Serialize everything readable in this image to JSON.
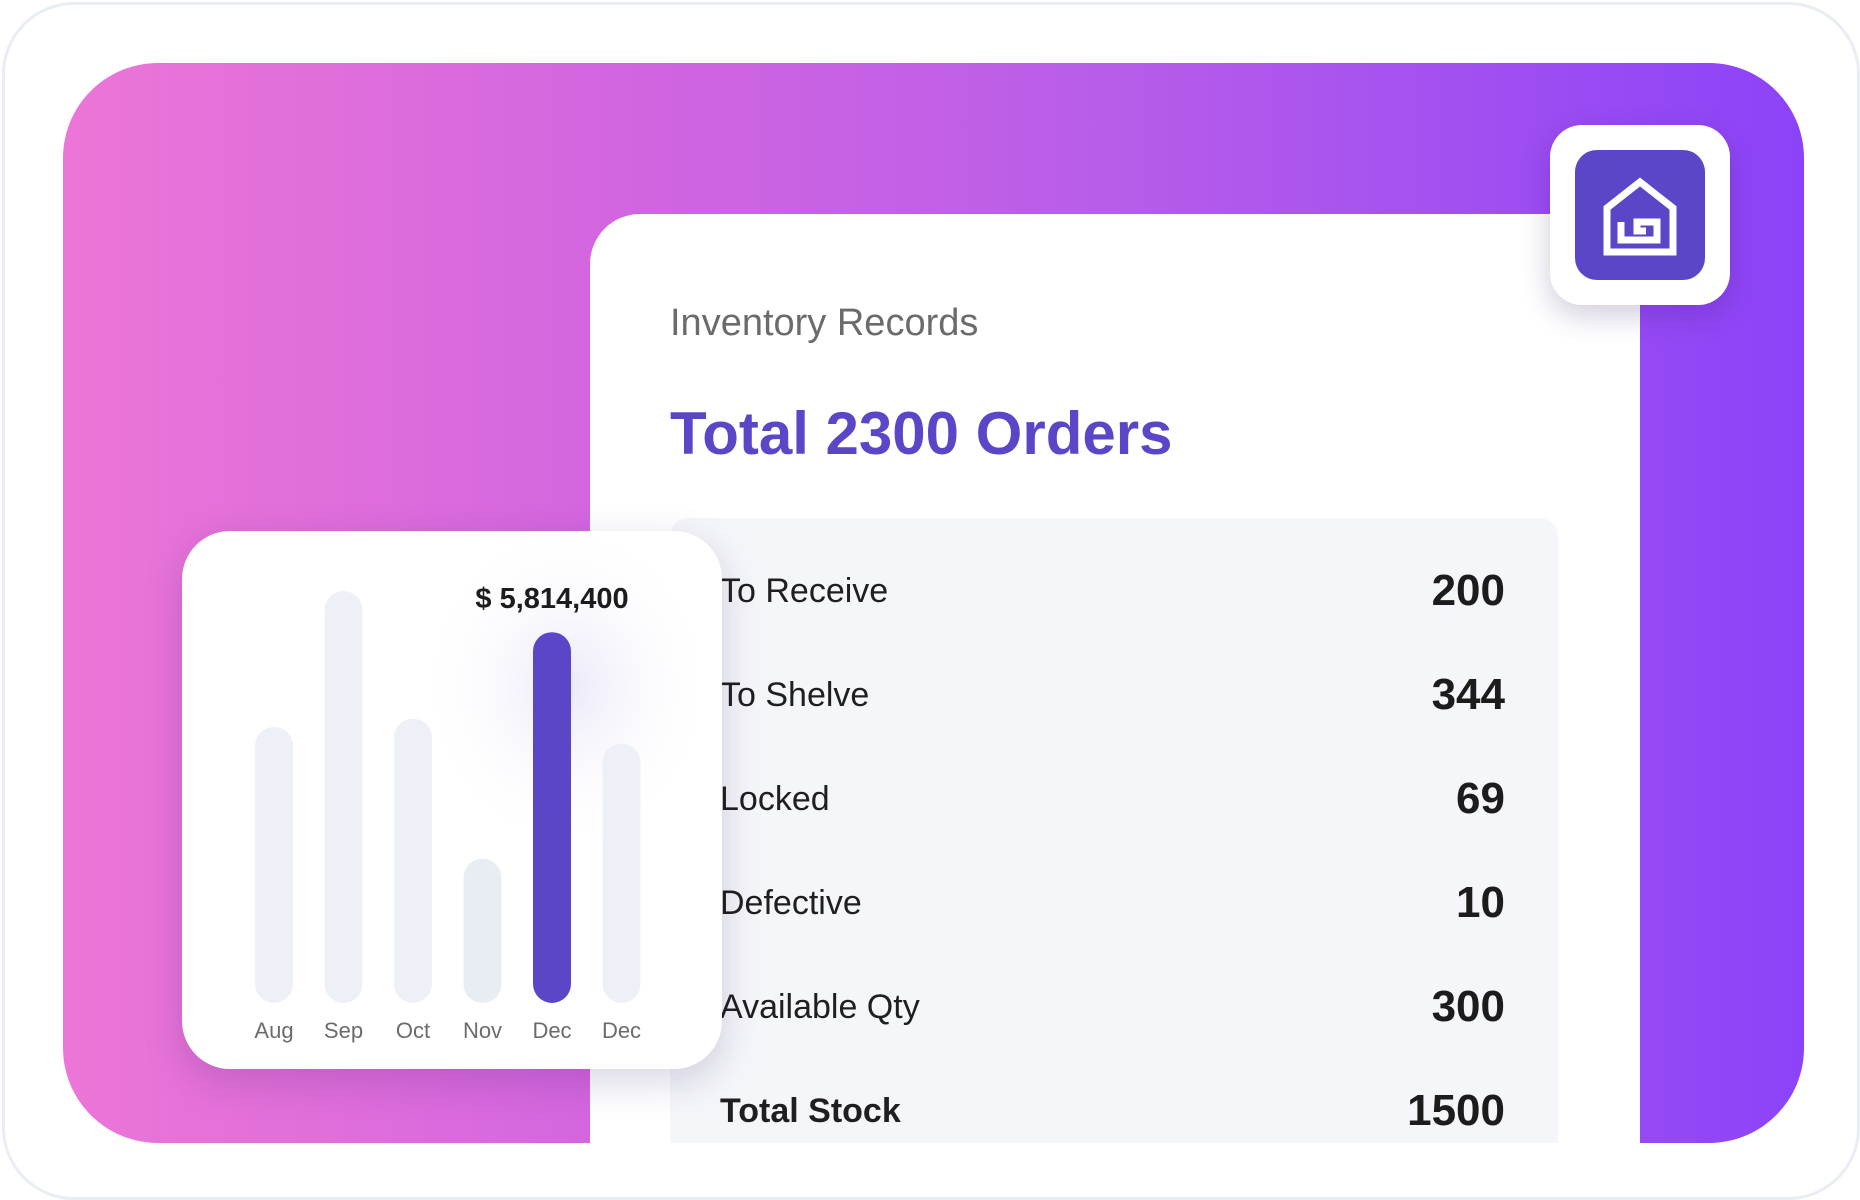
{
  "colors": {
    "accent": "#5a46c7",
    "bar_muted": "#eef0f7",
    "bar_muted_alt": "#e8ecf3",
    "gradient_start": "#ec76d7",
    "gradient_end": "#8c43f8",
    "label": "#6b6b6b"
  },
  "logo": {
    "icon": "house-g-logo-icon"
  },
  "panel": {
    "subtitle": "Inventory Records",
    "title": "Total 2300 Orders",
    "stats": [
      {
        "label": "To Receive",
        "value": "200"
      },
      {
        "label": "To Shelve",
        "value": "344"
      },
      {
        "label": "Locked",
        "value": "69"
      },
      {
        "label": "Defective",
        "value": "10"
      },
      {
        "label": "Available Qty",
        "value": "300"
      },
      {
        "label": "Total Stock",
        "value": "1500"
      }
    ]
  },
  "chart_data": {
    "type": "bar",
    "categories": [
      "Aug",
      "Sep",
      "Oct",
      "Nov",
      "Dec",
      "Dec"
    ],
    "values": [
      0.67,
      1.0,
      0.69,
      0.35,
      0.9,
      0.63
    ],
    "highlight_index": 4,
    "highlight_label": "$ 5,814,400",
    "ylim": [
      0,
      1
    ],
    "grid": false
  }
}
